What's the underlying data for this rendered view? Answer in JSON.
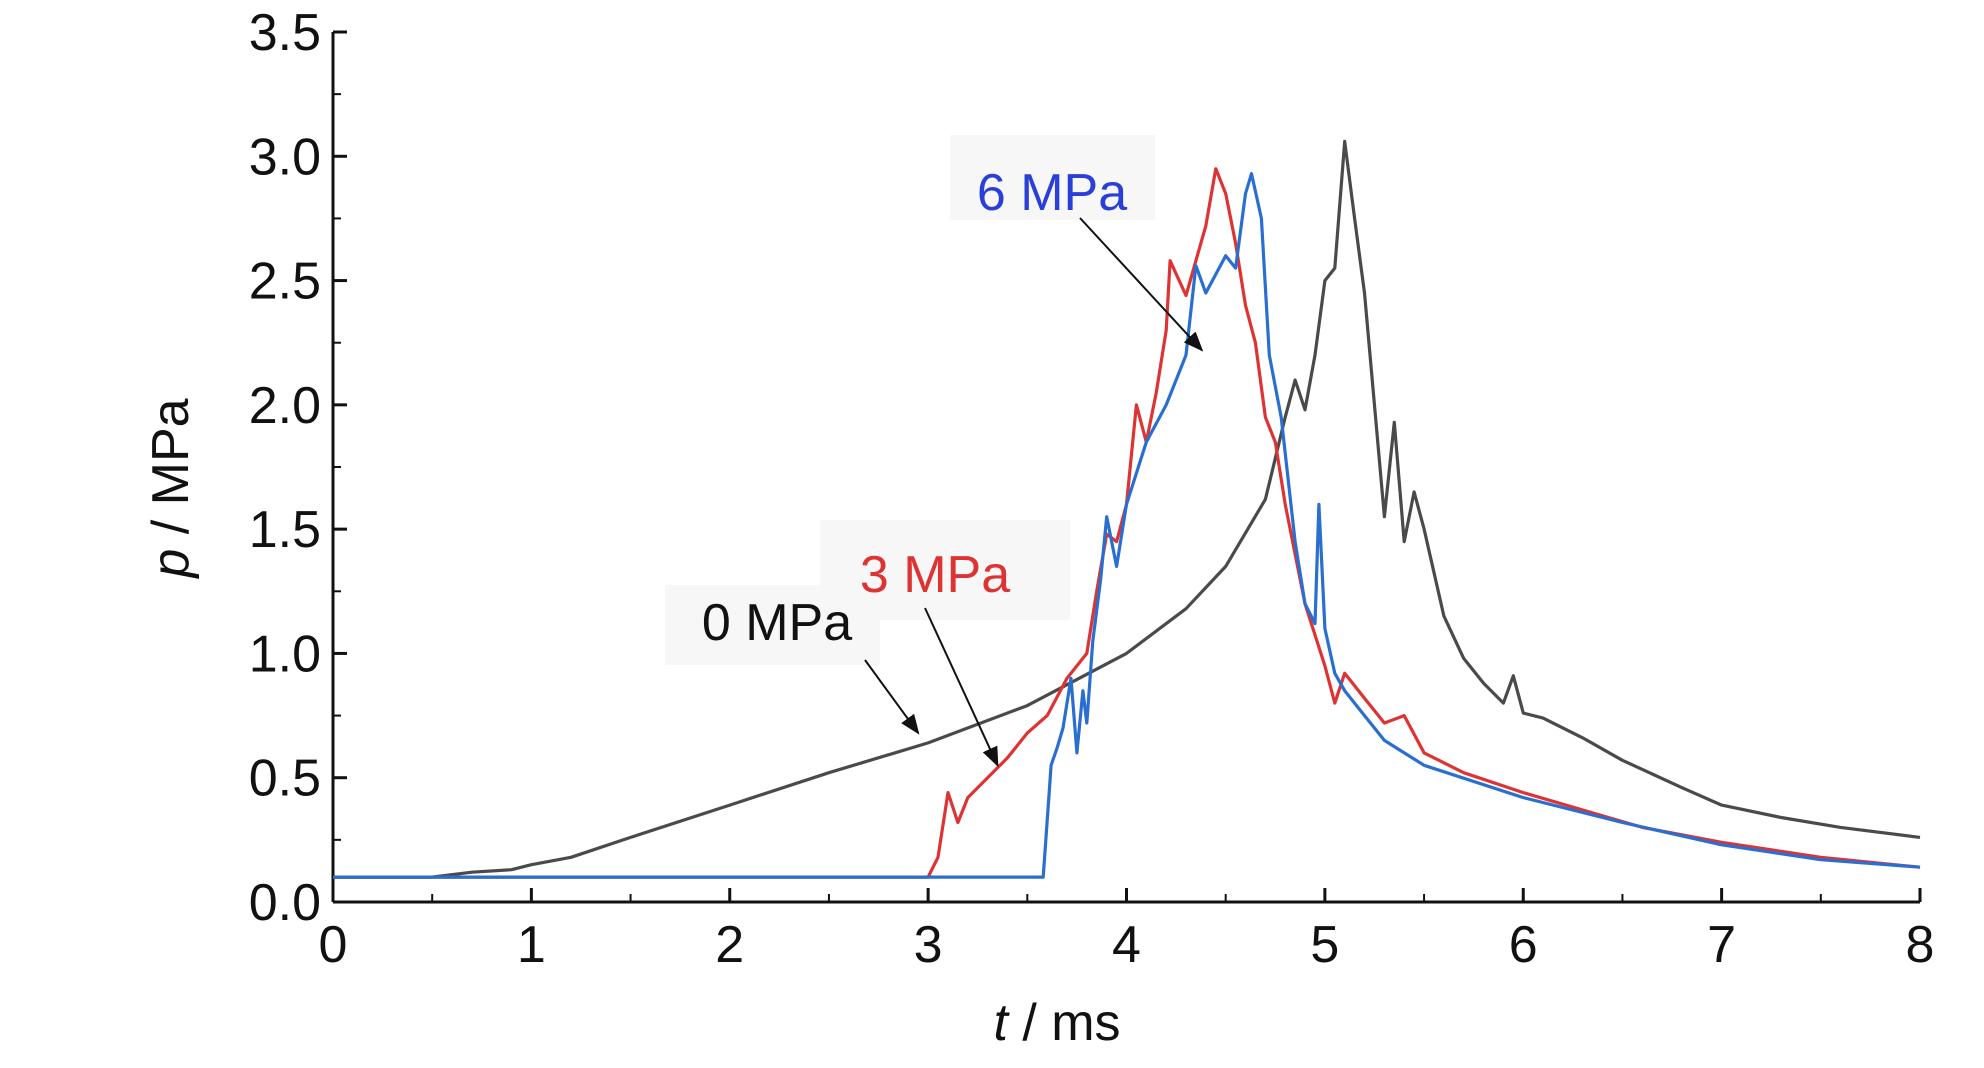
{
  "chart_data": {
    "type": "line",
    "title": "",
    "xlabel": {
      "var": "t",
      "unit": " / ms"
    },
    "ylabel": {
      "var": "p",
      "unit": " / MPa"
    },
    "xlim": [
      0,
      8
    ],
    "ylim": [
      0,
      3.5
    ],
    "xticks": [
      "0",
      "1",
      "2",
      "3",
      "4",
      "5",
      "6",
      "7",
      "8"
    ],
    "yticks": [
      "0.0",
      "0.5",
      "1.0",
      "1.5",
      "2.0",
      "2.5",
      "3.0",
      "3.5"
    ],
    "grid": false,
    "legend": "none",
    "series": [
      {
        "name": "0 MPa",
        "color": "#4a4a4a",
        "points": [
          [
            0,
            0.1
          ],
          [
            0.5,
            0.1
          ],
          [
            0.7,
            0.12
          ],
          [
            0.9,
            0.13
          ],
          [
            1.0,
            0.15
          ],
          [
            1.2,
            0.18
          ],
          [
            1.5,
            0.26
          ],
          [
            2.0,
            0.39
          ],
          [
            2.5,
            0.52
          ],
          [
            3.0,
            0.64
          ],
          [
            3.5,
            0.79
          ],
          [
            4.0,
            1.0
          ],
          [
            4.3,
            1.18
          ],
          [
            4.5,
            1.35
          ],
          [
            4.7,
            1.62
          ],
          [
            4.8,
            1.95
          ],
          [
            4.85,
            2.1
          ],
          [
            4.9,
            1.98
          ],
          [
            4.95,
            2.2
          ],
          [
            5.0,
            2.5
          ],
          [
            5.05,
            2.55
          ],
          [
            5.1,
            3.06
          ],
          [
            5.15,
            2.75
          ],
          [
            5.2,
            2.45
          ],
          [
            5.3,
            1.55
          ],
          [
            5.35,
            1.93
          ],
          [
            5.4,
            1.45
          ],
          [
            5.45,
            1.65
          ],
          [
            5.5,
            1.5
          ],
          [
            5.6,
            1.15
          ],
          [
            5.7,
            0.98
          ],
          [
            5.8,
            0.88
          ],
          [
            5.9,
            0.8
          ],
          [
            5.95,
            0.91
          ],
          [
            6.0,
            0.76
          ],
          [
            6.1,
            0.74
          ],
          [
            6.3,
            0.66
          ],
          [
            6.5,
            0.57
          ],
          [
            6.8,
            0.46
          ],
          [
            7.0,
            0.39
          ],
          [
            7.3,
            0.34
          ],
          [
            7.6,
            0.3
          ],
          [
            8.0,
            0.26
          ]
        ]
      },
      {
        "name": "3 MPa",
        "color": "#dd3333",
        "points": [
          [
            0,
            0.1
          ],
          [
            3.0,
            0.1
          ],
          [
            3.05,
            0.18
          ],
          [
            3.1,
            0.44
          ],
          [
            3.15,
            0.32
          ],
          [
            3.2,
            0.42
          ],
          [
            3.3,
            0.5
          ],
          [
            3.4,
            0.58
          ],
          [
            3.5,
            0.68
          ],
          [
            3.6,
            0.75
          ],
          [
            3.7,
            0.9
          ],
          [
            3.8,
            1.0
          ],
          [
            3.85,
            1.25
          ],
          [
            3.9,
            1.48
          ],
          [
            3.95,
            1.45
          ],
          [
            4.0,
            1.6
          ],
          [
            4.05,
            2.0
          ],
          [
            4.1,
            1.85
          ],
          [
            4.15,
            2.05
          ],
          [
            4.2,
            2.3
          ],
          [
            4.22,
            2.58
          ],
          [
            4.3,
            2.44
          ],
          [
            4.4,
            2.72
          ],
          [
            4.45,
            2.95
          ],
          [
            4.5,
            2.85
          ],
          [
            4.55,
            2.65
          ],
          [
            4.6,
            2.4
          ],
          [
            4.65,
            2.25
          ],
          [
            4.7,
            1.95
          ],
          [
            4.75,
            1.85
          ],
          [
            4.8,
            1.6
          ],
          [
            4.9,
            1.2
          ],
          [
            5.0,
            0.95
          ],
          [
            5.05,
            0.8
          ],
          [
            5.1,
            0.92
          ],
          [
            5.2,
            0.82
          ],
          [
            5.3,
            0.72
          ],
          [
            5.4,
            0.75
          ],
          [
            5.5,
            0.6
          ],
          [
            5.7,
            0.52
          ],
          [
            6.0,
            0.44
          ],
          [
            6.3,
            0.37
          ],
          [
            6.6,
            0.3
          ],
          [
            7.0,
            0.24
          ],
          [
            7.5,
            0.18
          ],
          [
            8.0,
            0.14
          ]
        ]
      },
      {
        "name": "6 MPa",
        "color": "#2a6fd0",
        "points": [
          [
            0,
            0.1
          ],
          [
            3.58,
            0.1
          ],
          [
            3.62,
            0.55
          ],
          [
            3.65,
            0.62
          ],
          [
            3.68,
            0.7
          ],
          [
            3.72,
            0.9
          ],
          [
            3.75,
            0.6
          ],
          [
            3.78,
            0.85
          ],
          [
            3.8,
            0.72
          ],
          [
            3.83,
            1.05
          ],
          [
            3.87,
            1.3
          ],
          [
            3.9,
            1.55
          ],
          [
            3.95,
            1.35
          ],
          [
            4.0,
            1.6
          ],
          [
            4.1,
            1.85
          ],
          [
            4.2,
            2.0
          ],
          [
            4.3,
            2.2
          ],
          [
            4.35,
            2.56
          ],
          [
            4.4,
            2.45
          ],
          [
            4.5,
            2.6
          ],
          [
            4.55,
            2.55
          ],
          [
            4.6,
            2.85
          ],
          [
            4.63,
            2.93
          ],
          [
            4.68,
            2.75
          ],
          [
            4.72,
            2.2
          ],
          [
            4.78,
            1.95
          ],
          [
            4.85,
            1.45
          ],
          [
            4.9,
            1.2
          ],
          [
            4.95,
            1.12
          ],
          [
            4.97,
            1.6
          ],
          [
            5.0,
            1.1
          ],
          [
            5.05,
            0.92
          ],
          [
            5.1,
            0.85
          ],
          [
            5.2,
            0.75
          ],
          [
            5.3,
            0.65
          ],
          [
            5.5,
            0.55
          ],
          [
            6.0,
            0.42
          ],
          [
            6.5,
            0.32
          ],
          [
            7.0,
            0.23
          ],
          [
            7.5,
            0.17
          ],
          [
            8.0,
            0.14
          ]
        ]
      }
    ],
    "annotations": [
      {
        "text": "0 MPa",
        "color": "#111111",
        "arrow_to": [
          2.95,
          0.68
        ]
      },
      {
        "text": "3 MPa",
        "color": "#dd3333",
        "arrow_to": [
          3.35,
          0.55
        ]
      },
      {
        "text": "6 MPa",
        "color": "#2a3fd8",
        "arrow_to": [
          4.38,
          2.22
        ]
      }
    ]
  }
}
